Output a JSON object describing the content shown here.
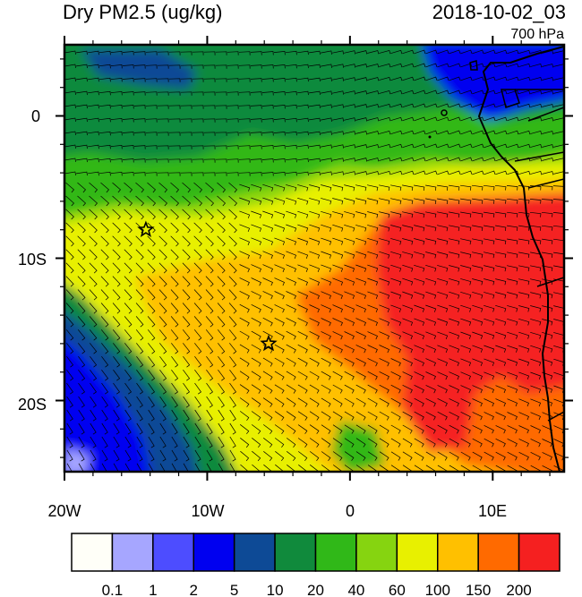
{
  "header": {
    "variable": "Dry PM2.5 (ug/kg)",
    "timestamp": "2018-10-02_03",
    "level": "700 hPa"
  },
  "axes": {
    "lat_labels": [
      "0",
      "10S",
      "20S"
    ],
    "lon_labels": [
      "20W",
      "10W",
      "0",
      "10E"
    ]
  },
  "map": {
    "lon_range": [
      -20,
      15
    ],
    "lat_range": [
      -25,
      5
    ],
    "site_markers": [
      {
        "name": "star-1",
        "lon": -14.3,
        "lat": -8.0
      },
      {
        "name": "star-2",
        "lon": -5.7,
        "lat": -16.0
      }
    ]
  },
  "colorbar": {
    "colors": [
      "#fffff8",
      "#a6a6ff",
      "#4d4dff",
      "#0000f0",
      "#0d4a96",
      "#108a3c",
      "#30b818",
      "#86d410",
      "#e8f000",
      "#ffc000",
      "#ff6a00",
      "#f52020"
    ],
    "labels": [
      "0.1",
      "1",
      "2",
      "5",
      "10",
      "20",
      "40",
      "60",
      "100",
      "150",
      "200"
    ]
  }
}
